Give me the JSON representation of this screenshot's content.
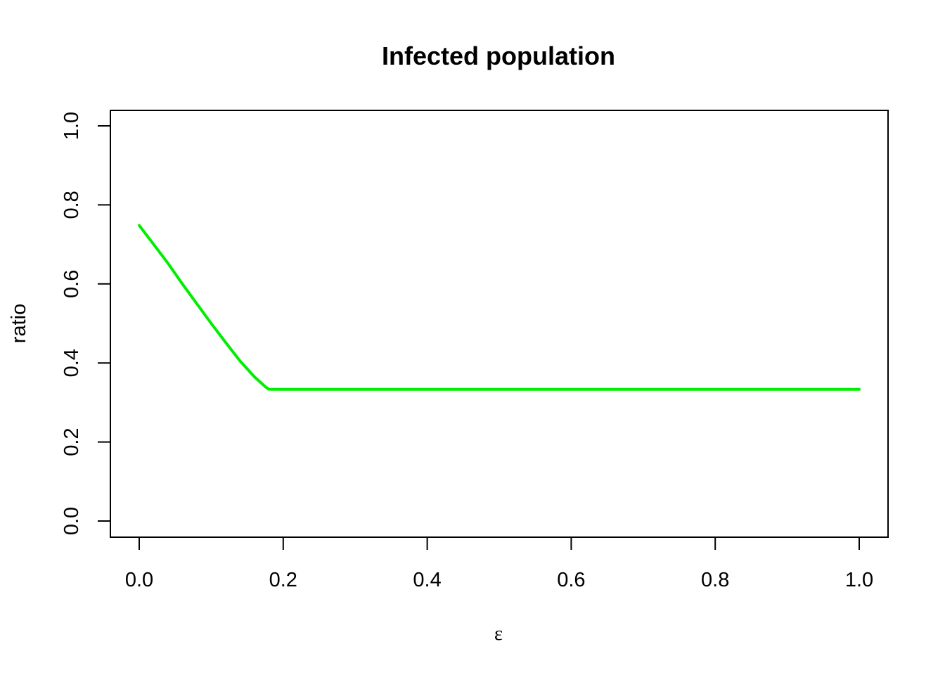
{
  "chart_data": {
    "type": "line",
    "title": "Infected population",
    "xlabel": "ε",
    "ylabel": "ratio",
    "xlim": [
      0.0,
      1.0
    ],
    "ylim": [
      0.0,
      1.0
    ],
    "xticks": [
      "0.0",
      "0.2",
      "0.4",
      "0.6",
      "0.8",
      "1.0"
    ],
    "yticks": [
      "0.0",
      "0.2",
      "0.4",
      "0.6",
      "0.8",
      "1.0"
    ],
    "grid": false,
    "series": [
      {
        "color": "#00ee00",
        "x": [
          0.0,
          0.02,
          0.04,
          0.06,
          0.08,
          0.1,
          0.12,
          0.14,
          0.16,
          0.175,
          0.18,
          0.19,
          0.2,
          0.3,
          0.4,
          0.5,
          0.6,
          0.7,
          0.8,
          0.9,
          1.0
        ],
        "y": [
          0.748,
          0.7,
          0.652,
          0.6,
          0.55,
          0.5,
          0.452,
          0.405,
          0.365,
          0.34,
          0.3335,
          0.3333,
          0.3333,
          0.3333,
          0.3333,
          0.3333,
          0.3333,
          0.3333,
          0.3333,
          0.3333,
          0.3333
        ]
      }
    ]
  }
}
